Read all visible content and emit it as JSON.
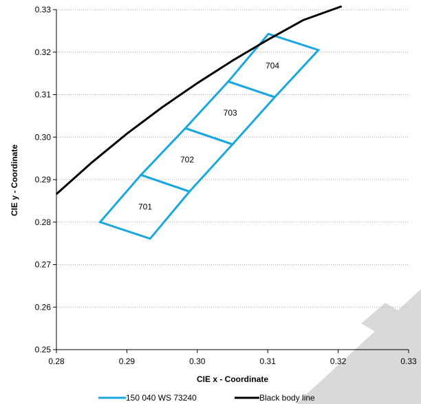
{
  "chart_data": {
    "type": "line",
    "title": "",
    "xlabel": "CIE x - Coordinate",
    "ylabel": "CIE y - Coordinate",
    "xlim": [
      0.28,
      0.33
    ],
    "ylim": [
      0.25,
      0.33
    ],
    "x_ticks": [
      0.28,
      0.29,
      0.3,
      0.31,
      0.32,
      0.33
    ],
    "y_ticks": [
      0.25,
      0.26,
      0.27,
      0.28,
      0.29,
      0.3,
      0.31,
      0.32,
      0.33
    ],
    "x_tick_labels": [
      "0.28",
      "0.29",
      "0.30",
      "0.31",
      "0.32",
      "0.33"
    ],
    "y_tick_labels": [
      "0.25",
      "0.26",
      "0.27",
      "0.28",
      "0.29",
      "0.30",
      "0.31",
      "0.32",
      "0.33"
    ],
    "grid": "horizontal-dotted",
    "legend_position": "bottom",
    "series": [
      {
        "name": "150 040 WS 73240",
        "color": "#1aa7e0",
        "regions": [
          {
            "label": "701",
            "points": [
              [
                0.2862,
                0.28
              ],
              [
                0.2933,
                0.2761
              ],
              [
                0.2989,
                0.2872
              ],
              [
                0.292,
                0.2911
              ]
            ]
          },
          {
            "label": "702",
            "points": [
              [
                0.292,
                0.2911
              ],
              [
                0.2989,
                0.2872
              ],
              [
                0.305,
                0.2983
              ],
              [
                0.2983,
                0.3021
              ]
            ]
          },
          {
            "label": "703",
            "points": [
              [
                0.2983,
                0.3021
              ],
              [
                0.305,
                0.2983
              ],
              [
                0.311,
                0.3094
              ],
              [
                0.3044,
                0.3131
              ]
            ]
          },
          {
            "label": "704",
            "points": [
              [
                0.3044,
                0.3131
              ],
              [
                0.311,
                0.3094
              ],
              [
                0.3172,
                0.3205
              ],
              [
                0.3101,
                0.3243
              ]
            ]
          }
        ]
      },
      {
        "name": "Black body line",
        "color": "#000000",
        "points": [
          [
            0.28,
            0.2866
          ],
          [
            0.285,
            0.294
          ],
          [
            0.29,
            0.3008
          ],
          [
            0.295,
            0.307
          ],
          [
            0.3,
            0.3127
          ],
          [
            0.305,
            0.318
          ],
          [
            0.31,
            0.3229
          ],
          [
            0.315,
            0.3275
          ],
          [
            0.3205,
            0.3308
          ]
        ]
      }
    ]
  }
}
